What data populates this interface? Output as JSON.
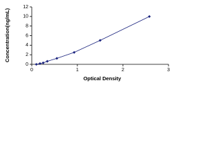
{
  "chart_data": {
    "type": "line",
    "x_label": "Optical Density",
    "y_label": "Concentration(ng/mL)",
    "x": [
      0.1,
      0.18,
      0.25,
      0.34,
      0.55,
      0.93,
      1.5,
      2.58
    ],
    "values": [
      0,
      0.16,
      0.31,
      0.63,
      1.25,
      2.5,
      5,
      10
    ],
    "color": "#1a237e",
    "marker": "diamond",
    "xlim": [
      0,
      3
    ],
    "xticks": [
      0,
      1,
      2,
      3
    ],
    "ylim": [
      0,
      12
    ],
    "yticks": [
      0,
      2,
      4,
      6,
      8,
      10,
      12
    ],
    "grid": false
  }
}
